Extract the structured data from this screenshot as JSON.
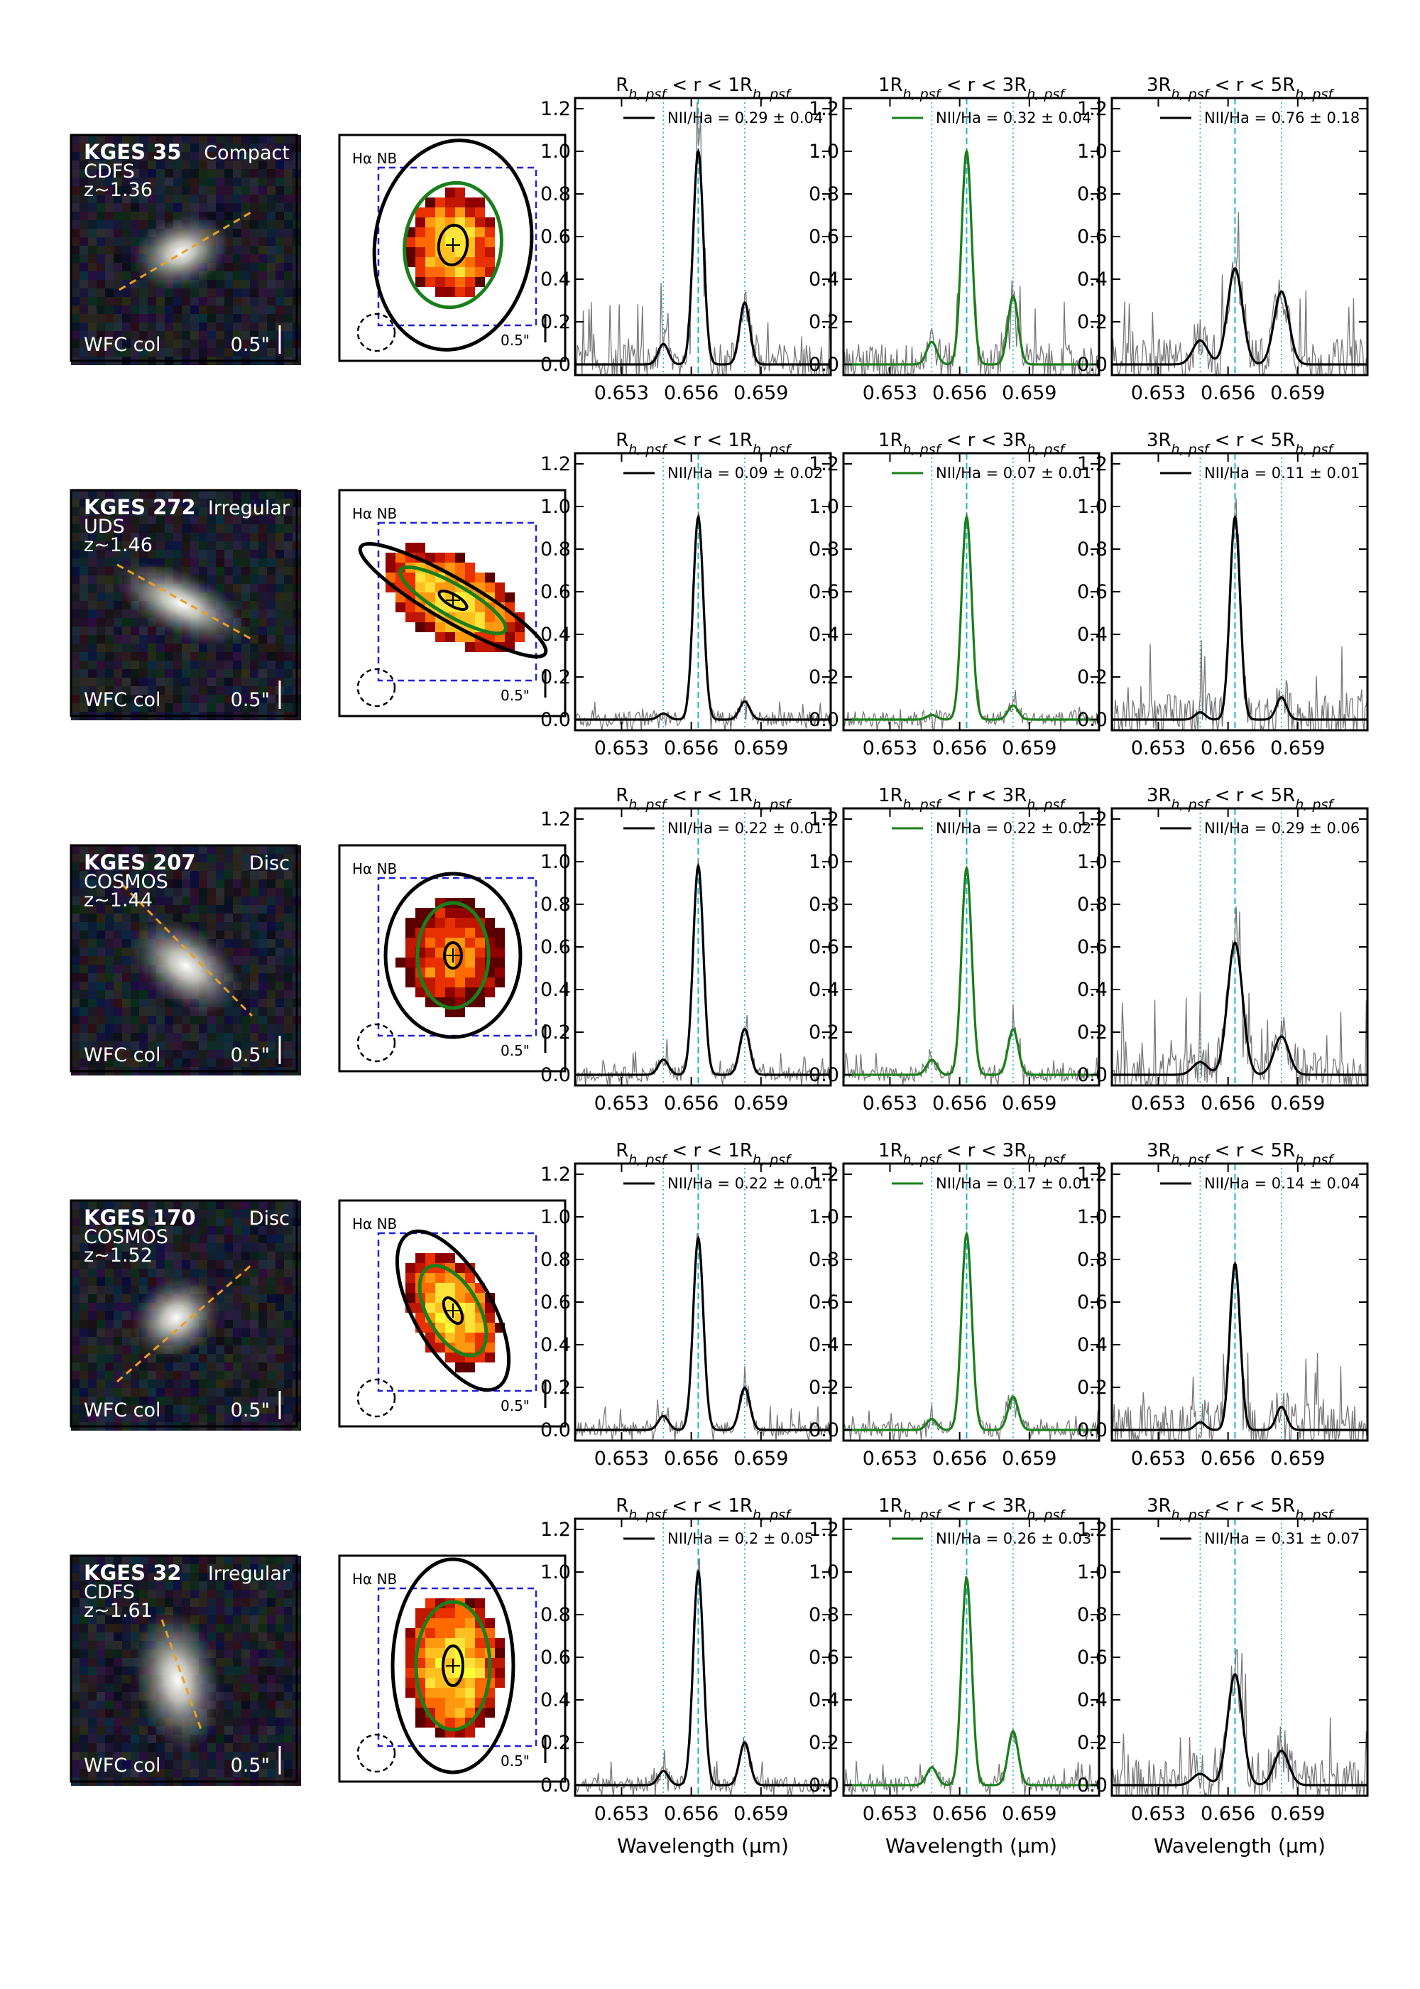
{
  "figure": {
    "column_titles": [
      "R_h,psf < r < 1R_h,psf",
      "1R_h,psf < r < 3R_h,psf",
      "3R_h,psf < r < 5R_h,psf"
    ],
    "xlabel": "Wavelength (μm)",
    "yticks": [
      "0.0",
      "0.2",
      "0.4",
      "0.6",
      "0.8",
      "1.0",
      "1.2"
    ],
    "xticks": [
      "0.653",
      "0.656",
      "0.659"
    ],
    "map_label": "Hα NB",
    "scale_label": "0.5\"",
    "wfc_label": "WFC col",
    "colors": {
      "inner": "#000000",
      "middle": "#1a7f1a",
      "outer": "#000000",
      "lines": "#1fb4c8",
      "slit": "#e8a020",
      "box": "#2020dd"
    }
  },
  "galaxies": [
    {
      "name": "KGES 35",
      "morph": "Compact",
      "field": "CDFS",
      "z": "z~1.36",
      "labels": [
        "NII/Ha = 0.29 ± 0.04",
        "NII/Ha = 0.32 ± 0.04",
        "NII/Ha = 0.76 ± 0.18"
      ]
    },
    {
      "name": "KGES 272",
      "morph": "Irregular",
      "field": "UDS",
      "z": "z~1.46",
      "labels": [
        "NII/Ha = 0.09 ± 0.02",
        "NII/Ha = 0.07 ± 0.01",
        "NII/Ha = 0.11 ± 0.01"
      ]
    },
    {
      "name": "KGES 207",
      "morph": "Disc",
      "field": "COSMOS",
      "z": "z~1.44",
      "labels": [
        "NII/Ha = 0.22 ± 0.01",
        "NII/Ha = 0.22 ± 0.02",
        "NII/Ha = 0.29 ± 0.06"
      ]
    },
    {
      "name": "KGES 170",
      "morph": "Disc",
      "field": "COSMOS",
      "z": "z~1.52",
      "labels": [
        "NII/Ha = 0.22 ± 0.01",
        "NII/Ha = 0.17 ± 0.01",
        "NII/Ha = 0.14 ± 0.04"
      ]
    },
    {
      "name": "KGES 32",
      "morph": "Irregular",
      "field": "CDFS",
      "z": "z~1.61",
      "labels": [
        "NII/Ha = 0.2 ± 0.05",
        "NII/Ha = 0.26 ± 0.03",
        "NII/Ha = 0.31 ± 0.07"
      ]
    }
  ],
  "chart_data": [
    {
      "type": "line",
      "galaxy": "KGES 35",
      "annulus": 1,
      "ha_peak": 1.0,
      "nii_ratio": 0.29,
      "color": "#000000",
      "xlim": [
        0.651,
        0.662
      ],
      "ylim": [
        -0.05,
        1.25
      ],
      "halpha": 0.6563,
      "nii": [
        0.6548,
        0.6583
      ]
    },
    {
      "type": "line",
      "galaxy": "KGES 35",
      "annulus": 2,
      "ha_peak": 1.0,
      "nii_ratio": 0.32,
      "color": "#1a7f1a",
      "xlim": [
        0.651,
        0.662
      ],
      "ylim": [
        -0.05,
        1.25
      ],
      "halpha": 0.6563,
      "nii": [
        0.6548,
        0.6583
      ]
    },
    {
      "type": "line",
      "galaxy": "KGES 35",
      "annulus": 3,
      "ha_peak": 0.45,
      "nii_ratio": 0.76,
      "color": "#000000",
      "xlim": [
        0.651,
        0.662
      ],
      "ylim": [
        -0.05,
        1.25
      ],
      "halpha": 0.6563,
      "nii": [
        0.6548,
        0.6583
      ]
    },
    {
      "type": "line",
      "galaxy": "KGES 272",
      "annulus": 1,
      "ha_peak": 0.95,
      "nii_ratio": 0.09,
      "color": "#000000",
      "xlim": [
        0.651,
        0.662
      ],
      "ylim": [
        -0.05,
        1.25
      ],
      "halpha": 0.6563,
      "nii": [
        0.6548,
        0.6583
      ]
    },
    {
      "type": "line",
      "galaxy": "KGES 272",
      "annulus": 2,
      "ha_peak": 0.95,
      "nii_ratio": 0.07,
      "color": "#1a7f1a",
      "xlim": [
        0.651,
        0.662
      ],
      "ylim": [
        -0.05,
        1.25
      ],
      "halpha": 0.6563,
      "nii": [
        0.6548,
        0.6583
      ]
    },
    {
      "type": "line",
      "galaxy": "KGES 272",
      "annulus": 3,
      "ha_peak": 0.95,
      "nii_ratio": 0.11,
      "color": "#000000",
      "xlim": [
        0.651,
        0.662
      ],
      "ylim": [
        -0.05,
        1.25
      ],
      "halpha": 0.6563,
      "nii": [
        0.6548,
        0.6583
      ]
    },
    {
      "type": "line",
      "galaxy": "KGES 207",
      "annulus": 1,
      "ha_peak": 0.98,
      "nii_ratio": 0.22,
      "color": "#000000",
      "xlim": [
        0.651,
        0.662
      ],
      "ylim": [
        -0.05,
        1.25
      ],
      "halpha": 0.6563,
      "nii": [
        0.6548,
        0.6583
      ]
    },
    {
      "type": "line",
      "galaxy": "KGES 207",
      "annulus": 2,
      "ha_peak": 0.97,
      "nii_ratio": 0.22,
      "color": "#1a7f1a",
      "xlim": [
        0.651,
        0.662
      ],
      "ylim": [
        -0.05,
        1.25
      ],
      "halpha": 0.6563,
      "nii": [
        0.6548,
        0.6583
      ]
    },
    {
      "type": "line",
      "galaxy": "KGES 207",
      "annulus": 3,
      "ha_peak": 0.62,
      "nii_ratio": 0.29,
      "color": "#000000",
      "xlim": [
        0.651,
        0.662
      ],
      "ylim": [
        -0.05,
        1.25
      ],
      "halpha": 0.6563,
      "nii": [
        0.6548,
        0.6583
      ]
    },
    {
      "type": "line",
      "galaxy": "KGES 170",
      "annulus": 1,
      "ha_peak": 0.9,
      "nii_ratio": 0.22,
      "color": "#000000",
      "xlim": [
        0.651,
        0.662
      ],
      "ylim": [
        -0.05,
        1.25
      ],
      "halpha": 0.6563,
      "nii": [
        0.6548,
        0.6583
      ]
    },
    {
      "type": "line",
      "galaxy": "KGES 170",
      "annulus": 2,
      "ha_peak": 0.92,
      "nii_ratio": 0.17,
      "color": "#1a7f1a",
      "xlim": [
        0.651,
        0.662
      ],
      "ylim": [
        -0.05,
        1.25
      ],
      "halpha": 0.6563,
      "nii": [
        0.6548,
        0.6583
      ]
    },
    {
      "type": "line",
      "galaxy": "KGES 170",
      "annulus": 3,
      "ha_peak": 0.78,
      "nii_ratio": 0.14,
      "color": "#000000",
      "xlim": [
        0.651,
        0.662
      ],
      "ylim": [
        -0.05,
        1.25
      ],
      "halpha": 0.6563,
      "nii": [
        0.6548,
        0.6583
      ]
    },
    {
      "type": "line",
      "galaxy": "KGES 32",
      "annulus": 1,
      "ha_peak": 1.0,
      "nii_ratio": 0.2,
      "color": "#000000",
      "xlim": [
        0.651,
        0.662
      ],
      "ylim": [
        -0.05,
        1.25
      ],
      "halpha": 0.6563,
      "nii": [
        0.6548,
        0.6583
      ]
    },
    {
      "type": "line",
      "galaxy": "KGES 32",
      "annulus": 2,
      "ha_peak": 0.97,
      "nii_ratio": 0.26,
      "color": "#1a7f1a",
      "xlim": [
        0.651,
        0.662
      ],
      "ylim": [
        -0.05,
        1.25
      ],
      "halpha": 0.6563,
      "nii": [
        0.6548,
        0.6583
      ]
    },
    {
      "type": "line",
      "galaxy": "KGES 32",
      "annulus": 3,
      "ha_peak": 0.52,
      "nii_ratio": 0.31,
      "color": "#000000",
      "xlim": [
        0.651,
        0.662
      ],
      "ylim": [
        -0.05,
        1.25
      ],
      "halpha": 0.6563,
      "nii": [
        0.6548,
        0.6583
      ]
    }
  ]
}
